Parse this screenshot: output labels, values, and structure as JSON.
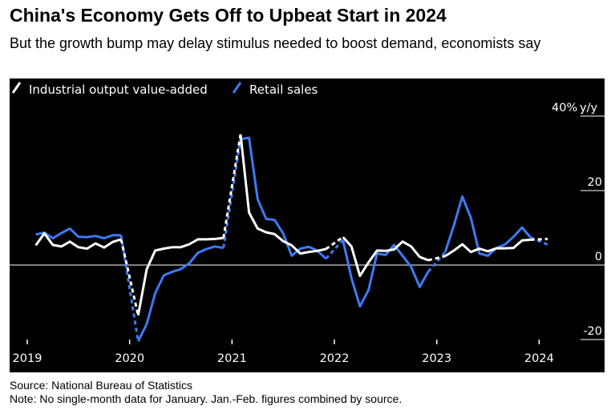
{
  "header": {
    "title": "China's Economy Gets Off to Upbeat Start in 2024",
    "subtitle": "But the growth bump may delay stimulus needed to boost demand, economists say"
  },
  "footer": {
    "source": "Source: National Bureau of Statistics",
    "note": "Note: No single-month data for January. Jan.-Feb. figures combined by source."
  },
  "colors": {
    "background": "#000000",
    "industrial": "#ffffff",
    "retail": "#3d7af5",
    "axis": "#ffffff"
  },
  "chart_data": {
    "type": "line",
    "title": "China's Economy Gets Off to Upbeat Start in 2024",
    "ylabel": "y/y",
    "y_unit_label": "40% y/y",
    "ylim": [
      -20,
      40
    ],
    "yticks": [
      -20,
      0,
      20,
      40
    ],
    "ytick_labels": [
      "-20",
      "0",
      "20",
      "40%"
    ],
    "x_start": "2019-01",
    "x_end": "2024-02",
    "xtick_labels": [
      "2019",
      "2020",
      "2021",
      "2022",
      "2023",
      "2024"
    ],
    "legend": [
      "Industrial output value-added",
      "Retail sales"
    ],
    "legend_position": "top-left",
    "note": "Dashed segments bridge the missing January values (Jan.-Feb. combined).",
    "series": [
      {
        "name": "Industrial output value-added",
        "color": "#ffffff",
        "points": [
          [
            "2019-02",
            5.3
          ],
          [
            "2019-03",
            8.5
          ],
          [
            "2019-04",
            5.4
          ],
          [
            "2019-05",
            5.0
          ],
          [
            "2019-06",
            6.3
          ],
          [
            "2019-07",
            4.8
          ],
          [
            "2019-08",
            4.4
          ],
          [
            "2019-09",
            5.8
          ],
          [
            "2019-10",
            4.7
          ],
          [
            "2019-11",
            6.2
          ],
          [
            "2019-12",
            6.9
          ],
          [
            "2020-02",
            -13.5
          ],
          [
            "2020-03",
            -1.1
          ],
          [
            "2020-04",
            3.9
          ],
          [
            "2020-05",
            4.4
          ],
          [
            "2020-06",
            4.8
          ],
          [
            "2020-07",
            4.8
          ],
          [
            "2020-08",
            5.6
          ],
          [
            "2020-09",
            6.9
          ],
          [
            "2020-10",
            6.9
          ],
          [
            "2020-11",
            7.0
          ],
          [
            "2020-12",
            7.3
          ],
          [
            "2021-02",
            35.1
          ],
          [
            "2021-03",
            14.1
          ],
          [
            "2021-04",
            9.8
          ],
          [
            "2021-05",
            8.8
          ],
          [
            "2021-06",
            8.3
          ],
          [
            "2021-07",
            6.4
          ],
          [
            "2021-08",
            5.3
          ],
          [
            "2021-09",
            3.1
          ],
          [
            "2021-10",
            3.5
          ],
          [
            "2021-11",
            3.8
          ],
          [
            "2021-12",
            4.3
          ],
          [
            "2022-02",
            7.5
          ],
          [
            "2022-03",
            5.0
          ],
          [
            "2022-04",
            -2.9
          ],
          [
            "2022-05",
            0.7
          ],
          [
            "2022-06",
            3.9
          ],
          [
            "2022-07",
            3.8
          ],
          [
            "2022-08",
            4.2
          ],
          [
            "2022-09",
            6.3
          ],
          [
            "2022-10",
            5.0
          ],
          [
            "2022-11",
            2.2
          ],
          [
            "2022-12",
            1.3
          ],
          [
            "2023-02",
            2.4
          ],
          [
            "2023-03",
            3.9
          ],
          [
            "2023-04",
            5.6
          ],
          [
            "2023-05",
            3.5
          ],
          [
            "2023-06",
            4.4
          ],
          [
            "2023-07",
            3.7
          ],
          [
            "2023-08",
            4.5
          ],
          [
            "2023-09",
            4.5
          ],
          [
            "2023-10",
            4.6
          ],
          [
            "2023-11",
            6.6
          ],
          [
            "2023-12",
            6.8
          ],
          [
            "2024-02",
            7.0
          ]
        ]
      },
      {
        "name": "Retail sales",
        "color": "#3d7af5",
        "points": [
          [
            "2019-02",
            8.2
          ],
          [
            "2019-03",
            8.7
          ],
          [
            "2019-04",
            7.2
          ],
          [
            "2019-05",
            8.6
          ],
          [
            "2019-06",
            9.8
          ],
          [
            "2019-07",
            7.6
          ],
          [
            "2019-08",
            7.5
          ],
          [
            "2019-09",
            7.8
          ],
          [
            "2019-10",
            7.2
          ],
          [
            "2019-11",
            8.0
          ],
          [
            "2019-12",
            8.0
          ],
          [
            "2020-02",
            -20.5
          ],
          [
            "2020-03",
            -15.8
          ],
          [
            "2020-04",
            -7.5
          ],
          [
            "2020-05",
            -2.8
          ],
          [
            "2020-06",
            -1.8
          ],
          [
            "2020-07",
            -1.1
          ],
          [
            "2020-08",
            0.5
          ],
          [
            "2020-09",
            3.3
          ],
          [
            "2020-10",
            4.3
          ],
          [
            "2020-11",
            5.0
          ],
          [
            "2020-12",
            4.6
          ],
          [
            "2021-02",
            33.8
          ],
          [
            "2021-03",
            34.2
          ],
          [
            "2021-04",
            17.7
          ],
          [
            "2021-05",
            12.4
          ],
          [
            "2021-06",
            12.1
          ],
          [
            "2021-07",
            8.5
          ],
          [
            "2021-08",
            2.5
          ],
          [
            "2021-09",
            4.4
          ],
          [
            "2021-10",
            4.9
          ],
          [
            "2021-11",
            3.9
          ],
          [
            "2021-12",
            1.7
          ],
          [
            "2022-02",
            6.7
          ],
          [
            "2022-03",
            -3.5
          ],
          [
            "2022-04",
            -11.1
          ],
          [
            "2022-05",
            -6.7
          ],
          [
            "2022-06",
            3.1
          ],
          [
            "2022-07",
            2.7
          ],
          [
            "2022-08",
            5.4
          ],
          [
            "2022-09",
            2.5
          ],
          [
            "2022-10",
            -0.5
          ],
          [
            "2022-11",
            -5.9
          ],
          [
            "2022-12",
            -1.8
          ],
          [
            "2023-02",
            3.5
          ],
          [
            "2023-03",
            10.6
          ],
          [
            "2023-04",
            18.4
          ],
          [
            "2023-05",
            12.7
          ],
          [
            "2023-06",
            3.1
          ],
          [
            "2023-07",
            2.5
          ],
          [
            "2023-08",
            4.6
          ],
          [
            "2023-09",
            5.5
          ],
          [
            "2023-10",
            7.6
          ],
          [
            "2023-11",
            10.1
          ],
          [
            "2023-12",
            7.4
          ],
          [
            "2024-02",
            5.5
          ]
        ]
      }
    ]
  }
}
